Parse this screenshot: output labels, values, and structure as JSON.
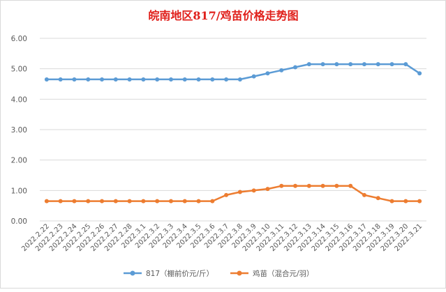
{
  "chart_data": {
    "type": "line",
    "title": "皖南地区817/鸡苗价格走势图",
    "xlabel": "",
    "ylabel": "",
    "ylim": [
      0,
      6
    ],
    "yticks": [
      "0.00",
      "1.00",
      "2.00",
      "3.00",
      "4.00",
      "5.00",
      "6.00"
    ],
    "grid": true,
    "legend_position": "bottom",
    "categories": [
      "2022.2.22",
      "2022.2.23",
      "2022.2.24",
      "2022.2.25",
      "2022.2.26",
      "2022.2.27",
      "2022.2.28",
      "2022.3.1",
      "2022.3.2",
      "2022.3.3",
      "2022.3.4",
      "2022.3.5",
      "2022.3.6",
      "2022.3.7",
      "2022.3.8",
      "2022.3.9",
      "2022.3.10",
      "2022.3.11",
      "2022.3.12",
      "2022.3.13",
      "2022.3.14",
      "2022.3.15",
      "2022.3.16",
      "2022.3.17",
      "2022.3.18",
      "2022.3.19",
      "2022.3.20",
      "2022.3.21"
    ],
    "series": [
      {
        "name": "817（棚前价元/斤）",
        "color": "#5b9bd5",
        "values": [
          4.65,
          4.65,
          4.65,
          4.65,
          4.65,
          4.65,
          4.65,
          4.65,
          4.65,
          4.65,
          4.65,
          4.65,
          4.65,
          4.65,
          4.65,
          4.75,
          4.85,
          4.95,
          5.05,
          5.15,
          5.15,
          5.15,
          5.15,
          5.15,
          5.15,
          5.15,
          5.15,
          4.85
        ]
      },
      {
        "name": "鸡苗（混合元/羽）",
        "color": "#ed7d31",
        "values": [
          0.65,
          0.65,
          0.65,
          0.65,
          0.65,
          0.65,
          0.65,
          0.65,
          0.65,
          0.65,
          0.65,
          0.65,
          0.65,
          0.85,
          0.95,
          1.0,
          1.05,
          1.15,
          1.15,
          1.15,
          1.15,
          1.15,
          1.15,
          0.85,
          0.75,
          0.65,
          0.65,
          0.65
        ]
      }
    ]
  }
}
